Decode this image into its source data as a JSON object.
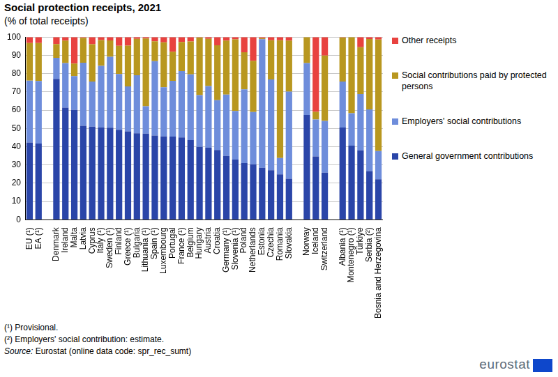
{
  "chart_data": {
    "type": "bar",
    "title": "Social protection receipts, 2021",
    "subtitle": "(% of total receipts)",
    "stacked": true,
    "grid": true,
    "legend": "right",
    "ylim": [
      0,
      100
    ],
    "yticks": [
      0,
      10,
      20,
      30,
      40,
      50,
      60,
      70,
      80,
      90,
      100
    ],
    "categories": [
      "EU (¹)",
      "EA (¹)",
      null,
      "Denmark",
      "Ireland",
      "Malta",
      "Latvia",
      "Cyprus",
      "Italy (¹)",
      "Sweden (¹)",
      "Finland",
      "Greece (¹)",
      "Bulgaria",
      "Lithuania (¹)",
      "Spain (¹)",
      "Luxembourg",
      "Portugal",
      "France (¹)",
      "Belgium",
      "Hungary",
      "Austria",
      "Croatia",
      "Germany (¹)",
      "Slovenia (¹)",
      "Poland",
      "Netherlands",
      "Estonia",
      "Czechia",
      "Romania",
      "Slovakia",
      null,
      "Norway",
      "Iceland",
      "Switzerland",
      null,
      "Albania (¹)",
      "Montenegro (¹)",
      "Türkiye",
      "Serbia (²)",
      "Bosnia and Herzegovina"
    ],
    "series": [
      {
        "name": "General government contributions",
        "color": "#2a45a8",
        "values": [
          42.3,
          41.7,
          null,
          77.1,
          61.3,
          60.1,
          51.4,
          50.9,
          50.6,
          50.4,
          49.2,
          48.4,
          47.3,
          47.1,
          46.1,
          45.6,
          45.5,
          45.0,
          43.6,
          39.9,
          39.4,
          38.2,
          34.9,
          32.9,
          31.0,
          30.3,
          28.4,
          27.1,
          24.8,
          22.4,
          null,
          57.3,
          34.6,
          25.8,
          null,
          50.5,
          40.5,
          38.0,
          26.6,
          22.1
        ]
      },
      {
        "name": "Employers' social contributions",
        "color": "#6e8ddb",
        "values": [
          33.8,
          34.2,
          null,
          11.5,
          24.5,
          18.5,
          34.6,
          24.8,
          33.6,
          38.8,
          30.6,
          24.6,
          31.8,
          15.0,
          40.7,
          26.9,
          30.5,
          36.4,
          36.0,
          28.3,
          33.8,
          27.2,
          33.6,
          26.6,
          40.4,
          28.7,
          70.4,
          49.7,
          9.0,
          47.7,
          null,
          28.5,
          20.3,
          28.3,
          null,
          25.2,
          17.8,
          30.8,
          33.8,
          15.5
        ]
      },
      {
        "name": "Social contributions paid by protected persons",
        "color": "#b8971f",
        "values": [
          20.6,
          20.8,
          null,
          7.6,
          12.3,
          6.9,
          13.6,
          20.4,
          14.2,
          9.0,
          15.4,
          22.3,
          19.9,
          37.1,
          10.9,
          24.6,
          16.0,
          15.9,
          18.0,
          31.6,
          25.8,
          30.1,
          29.6,
          39.2,
          20.3,
          28.0,
          0.6,
          21.5,
          64.5,
          28.0,
          null,
          14.2,
          4.2,
          35.8,
          null,
          24.1,
          41.7,
          25.6,
          38.5,
          61.0
        ]
      },
      {
        "name": "Other receipts",
        "color": "#e8423f",
        "values": [
          3.3,
          3.3,
          null,
          3.8,
          1.9,
          14.5,
          0.4,
          3.9,
          1.6,
          1.8,
          4.8,
          4.7,
          1.0,
          0.8,
          2.3,
          2.9,
          8.0,
          2.7,
          2.4,
          0.2,
          1.0,
          4.5,
          1.9,
          1.3,
          8.3,
          13.0,
          0.6,
          1.7,
          1.7,
          1.9,
          null,
          0.0,
          40.9,
          10.1,
          null,
          0.2,
          0.0,
          5.6,
          1.1,
          1.4
        ]
      }
    ],
    "notes": [
      "(¹) Provisional.",
      "(²) Employers' social contribution: estimate."
    ],
    "source_label": "Source:",
    "source": "Eurostat (online data code: spr_rec_sumt)",
    "logo": "eurostat"
  }
}
